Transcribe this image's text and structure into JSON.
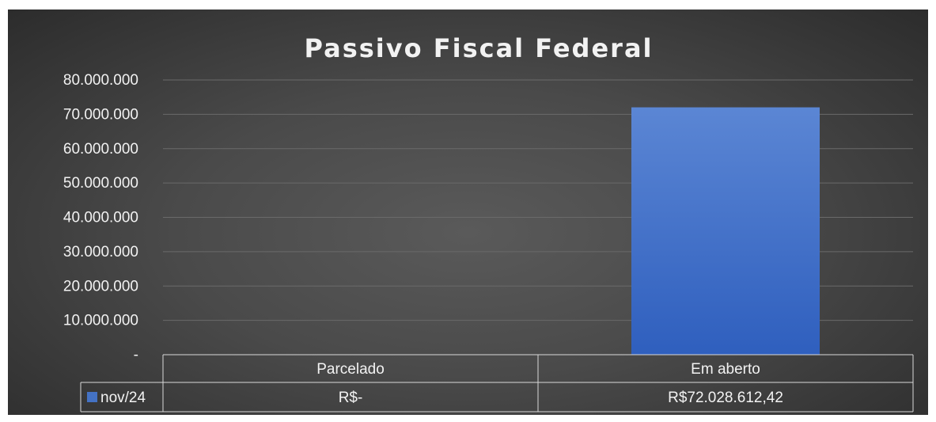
{
  "chart_data": {
    "type": "bar",
    "title": "Passivo Fiscal Federal",
    "categories": [
      "Parcelado",
      "Em aberto"
    ],
    "series": [
      {
        "name": "nov/24",
        "values": [
          0,
          72028612.42
        ],
        "table_labels": [
          "R$-",
          "R$72.028.612,42"
        ],
        "color": "#4472c4"
      }
    ],
    "ylim": [
      0,
      80000000
    ],
    "y_ticks": [
      {
        "value": 0,
        "label": "-"
      },
      {
        "value": 10000000,
        "label": "10.000.000"
      },
      {
        "value": 20000000,
        "label": "20.000.000"
      },
      {
        "value": 30000000,
        "label": "30.000.000"
      },
      {
        "value": 40000000,
        "label": "40.000.000"
      },
      {
        "value": 50000000,
        "label": "50.000.000"
      },
      {
        "value": 60000000,
        "label": "60.000.000"
      },
      {
        "value": 70000000,
        "label": "70.000.000"
      },
      {
        "value": 80000000,
        "label": "80.000.000"
      }
    ],
    "grid": true,
    "legend": "data-table",
    "colors": {
      "background": "#474747",
      "text": "#f2f2f2",
      "grid": "#6a6a6a",
      "bar": "#4472c4"
    }
  }
}
